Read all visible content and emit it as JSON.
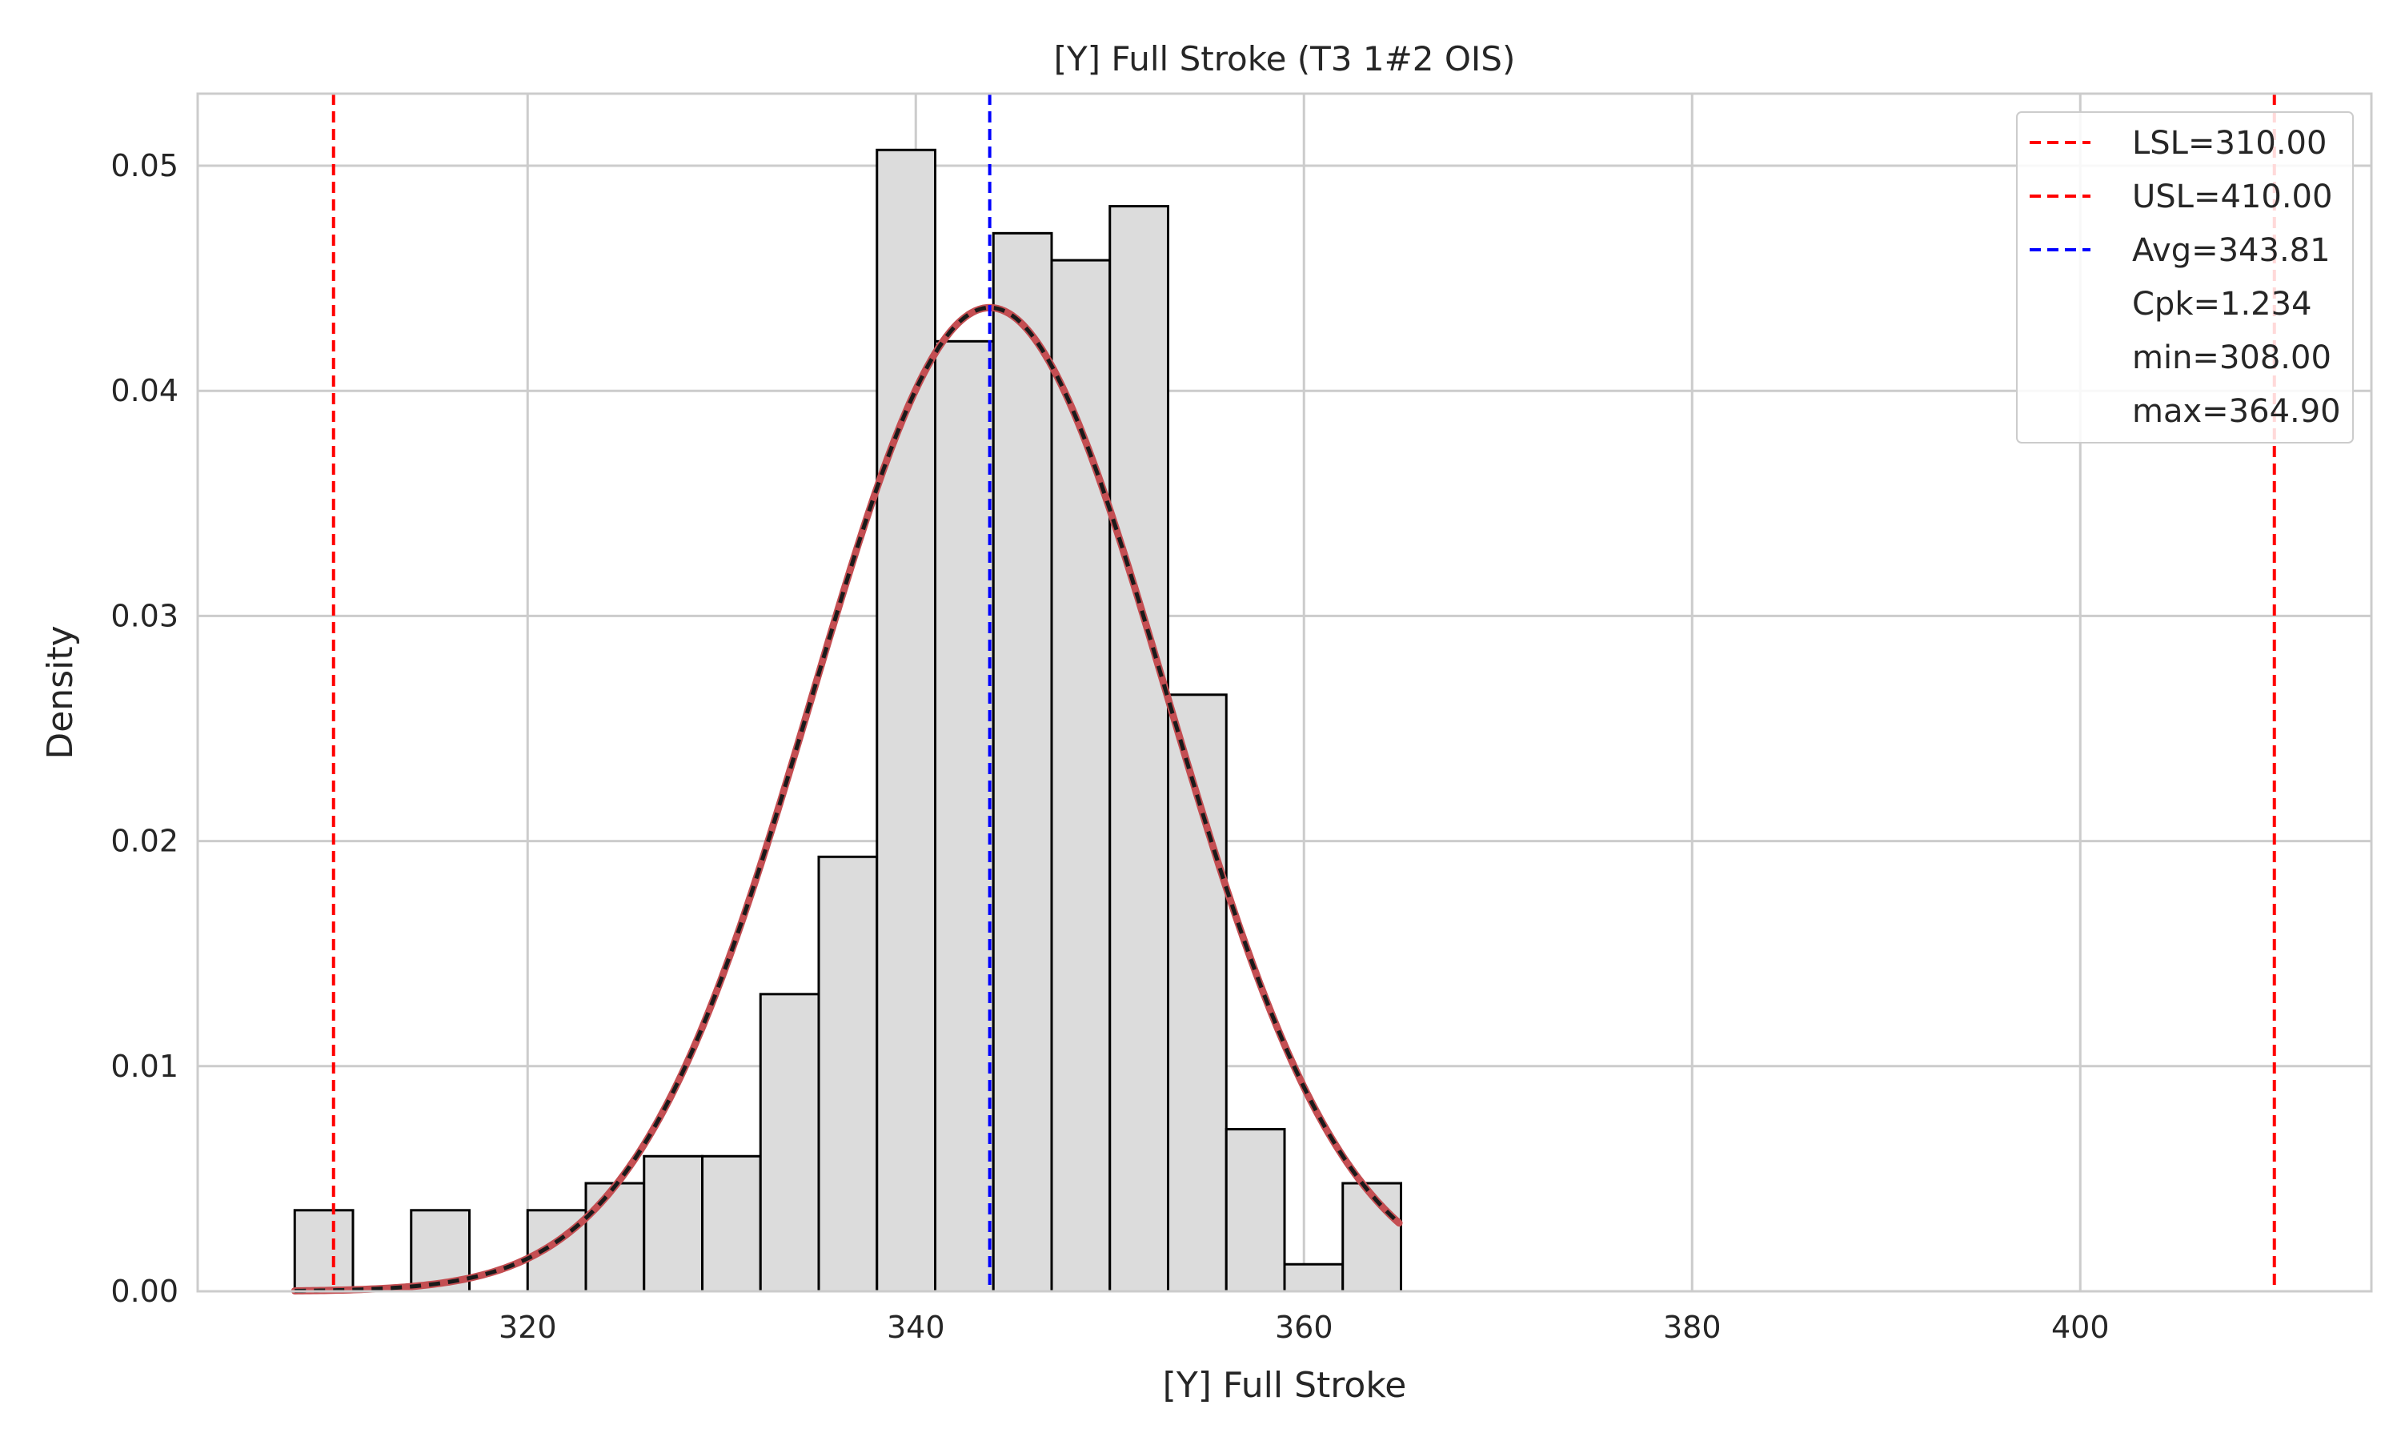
{
  "chart_data": {
    "type": "bar",
    "title": "[Y] Full Stroke (T3 1#2 OIS)",
    "xlabel": "[Y] Full Stroke",
    "ylabel": "Density",
    "xlim": [
      303.0,
      415.0
    ],
    "ylim": [
      0.0,
      0.0532
    ],
    "x_ticks": [
      320,
      340,
      360,
      380,
      400
    ],
    "x_tick_labels": [
      "320",
      "340",
      "360",
      "380",
      "400"
    ],
    "y_ticks": [
      0.0,
      0.01,
      0.02,
      0.03,
      0.04,
      0.05
    ],
    "y_tick_labels": [
      "0.00",
      "0.01",
      "0.02",
      "0.03",
      "0.04",
      "0.05"
    ],
    "grid": true,
    "histogram": {
      "bin_edges": [
        308.0,
        311.0,
        314.0,
        317.0,
        320.0,
        323.0,
        326.0,
        329.0,
        332.0,
        335.0,
        338.0,
        341.0,
        344.0,
        347.0,
        350.0,
        353.0,
        356.0,
        359.0,
        362.0,
        365.0
      ],
      "densities": [
        0.0036,
        0.0,
        0.0036,
        0.0,
        0.0036,
        0.0048,
        0.006,
        0.006,
        0.0132,
        0.0193,
        0.0507,
        0.0422,
        0.047,
        0.0458,
        0.0482,
        0.0265,
        0.0072,
        0.0012,
        0.0048
      ],
      "color": "#dcdcdc",
      "edgecolor": "#000000"
    },
    "normal_curve": {
      "mean": 343.81,
      "std": 9.13,
      "x_range": [
        308.0,
        364.9
      ],
      "color": "#c44e52",
      "overlay_color": "#1a1a1a"
    },
    "reference_lines": [
      {
        "name": "LSL",
        "value": 310.0,
        "color": "#ff0000",
        "style": "dashed"
      },
      {
        "name": "USL",
        "value": 410.0,
        "color": "#ff0000",
        "style": "dashed"
      },
      {
        "name": "Avg",
        "value": 343.81,
        "color": "#0000ff",
        "style": "dashed"
      }
    ],
    "legend": {
      "position": "top-right",
      "entries": [
        {
          "label": "LSL=310.00",
          "color": "#ff0000",
          "marker": "dashed"
        },
        {
          "label": "USL=410.00",
          "color": "#ff0000",
          "marker": "dashed"
        },
        {
          "label": "Avg=343.81",
          "color": "#0000ff",
          "marker": "dashed"
        },
        {
          "label": "Cpk=1.234",
          "color": "",
          "marker": "none"
        },
        {
          "label": "min=308.00",
          "color": "",
          "marker": "none"
        },
        {
          "label": "max=364.90",
          "color": "",
          "marker": "none"
        }
      ]
    }
  }
}
